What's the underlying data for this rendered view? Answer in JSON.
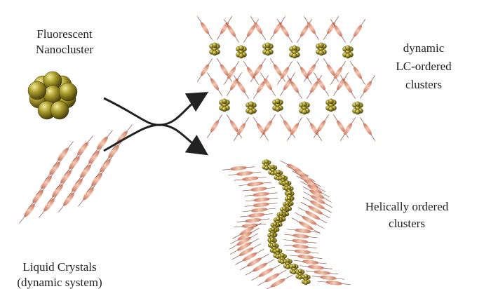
{
  "labels": {
    "nanocluster": [
      "Fluorescent",
      "Nanocluster"
    ],
    "liquid_crystals": [
      "Liquid Crystals",
      "(dynamic system)"
    ],
    "lc_ordered": [
      "dynamic",
      "LC-ordered",
      "clusters"
    ],
    "helical": [
      "Helically ordered",
      "clusters"
    ]
  }
}
